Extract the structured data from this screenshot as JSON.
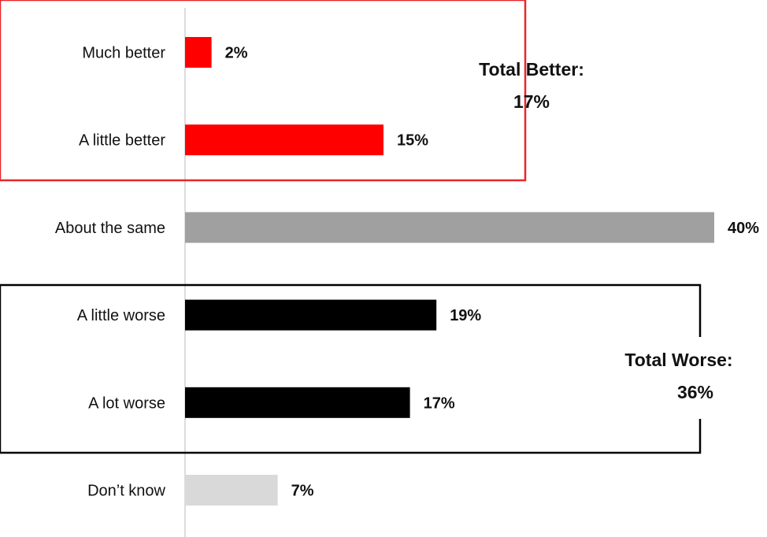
{
  "chart_data": {
    "type": "bar",
    "orientation": "horizontal",
    "categories": [
      "Much better",
      "A little better",
      "About the same",
      "A little worse",
      "A lot worse",
      "Don’t know"
    ],
    "values": [
      2,
      15,
      40,
      19,
      17,
      7
    ],
    "value_labels": [
      "2%",
      "15%",
      "40%",
      "19%",
      "17%",
      "7%"
    ],
    "unit": "%",
    "xlim": [
      0,
      40
    ],
    "bar_colors": [
      "#ff0000",
      "#ff0000",
      "#a0a0a0",
      "#000000",
      "#000000",
      "#d9d9d9"
    ],
    "grid": false,
    "groups": [
      {
        "title": "Total Better:",
        "value": "17%",
        "members": [
          "Much better",
          "A little better"
        ],
        "border_color": "#e8262a"
      },
      {
        "title": "Total Worse:",
        "value": "36%",
        "members": [
          "A little worse",
          "A lot worse"
        ],
        "border_color": "#000000"
      }
    ]
  }
}
